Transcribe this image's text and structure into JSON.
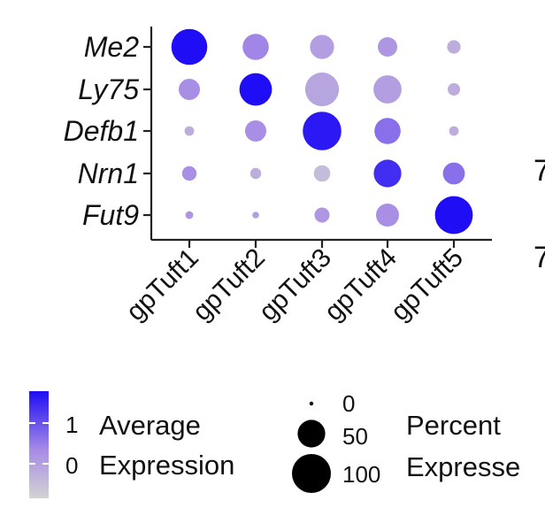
{
  "chart_data": {
    "type": "dotplot",
    "genes": [
      "Me2",
      "Ly75",
      "Defb1",
      "Nrn1",
      "Fut9"
    ],
    "clusters": [
      "gpTuft1",
      "gpTuft2",
      "gpTuft3",
      "gpTuft4",
      "gpTuft5"
    ],
    "average_expression": [
      [
        1.6,
        0.5,
        0.2,
        0.3,
        0.0
      ],
      [
        0.4,
        1.6,
        0.1,
        0.2,
        0.0
      ],
      [
        0.0,
        0.4,
        1.5,
        0.7,
        0.0
      ],
      [
        0.4,
        0.0,
        -0.2,
        1.3,
        0.7
      ],
      [
        0.3,
        0.2,
        0.3,
        0.4,
        1.6
      ]
    ],
    "percent_expressed": [
      [
        85,
        45,
        38,
        25,
        12
      ],
      [
        30,
        70,
        75,
        52,
        10
      ],
      [
        6,
        30,
        98,
        45,
        6
      ],
      [
        14,
        8,
        18,
        50,
        32
      ],
      [
        4,
        3,
        15,
        35,
        95
      ]
    ],
    "color_legend": {
      "title_line1": "Average",
      "title_line2": "Expression",
      "ticks": [
        "1",
        "0"
      ],
      "low_color": "#d3d3d3",
      "high_color": "#1f0df5",
      "min": -0.5,
      "max": 1.6
    },
    "size_legend": {
      "title_line1": "Percent",
      "title_line2": "Expresse",
      "values": [
        0,
        50,
        100
      ],
      "labels": [
        "0",
        "50",
        "100"
      ]
    },
    "cropped_text": [
      "7",
      "7"
    ]
  }
}
